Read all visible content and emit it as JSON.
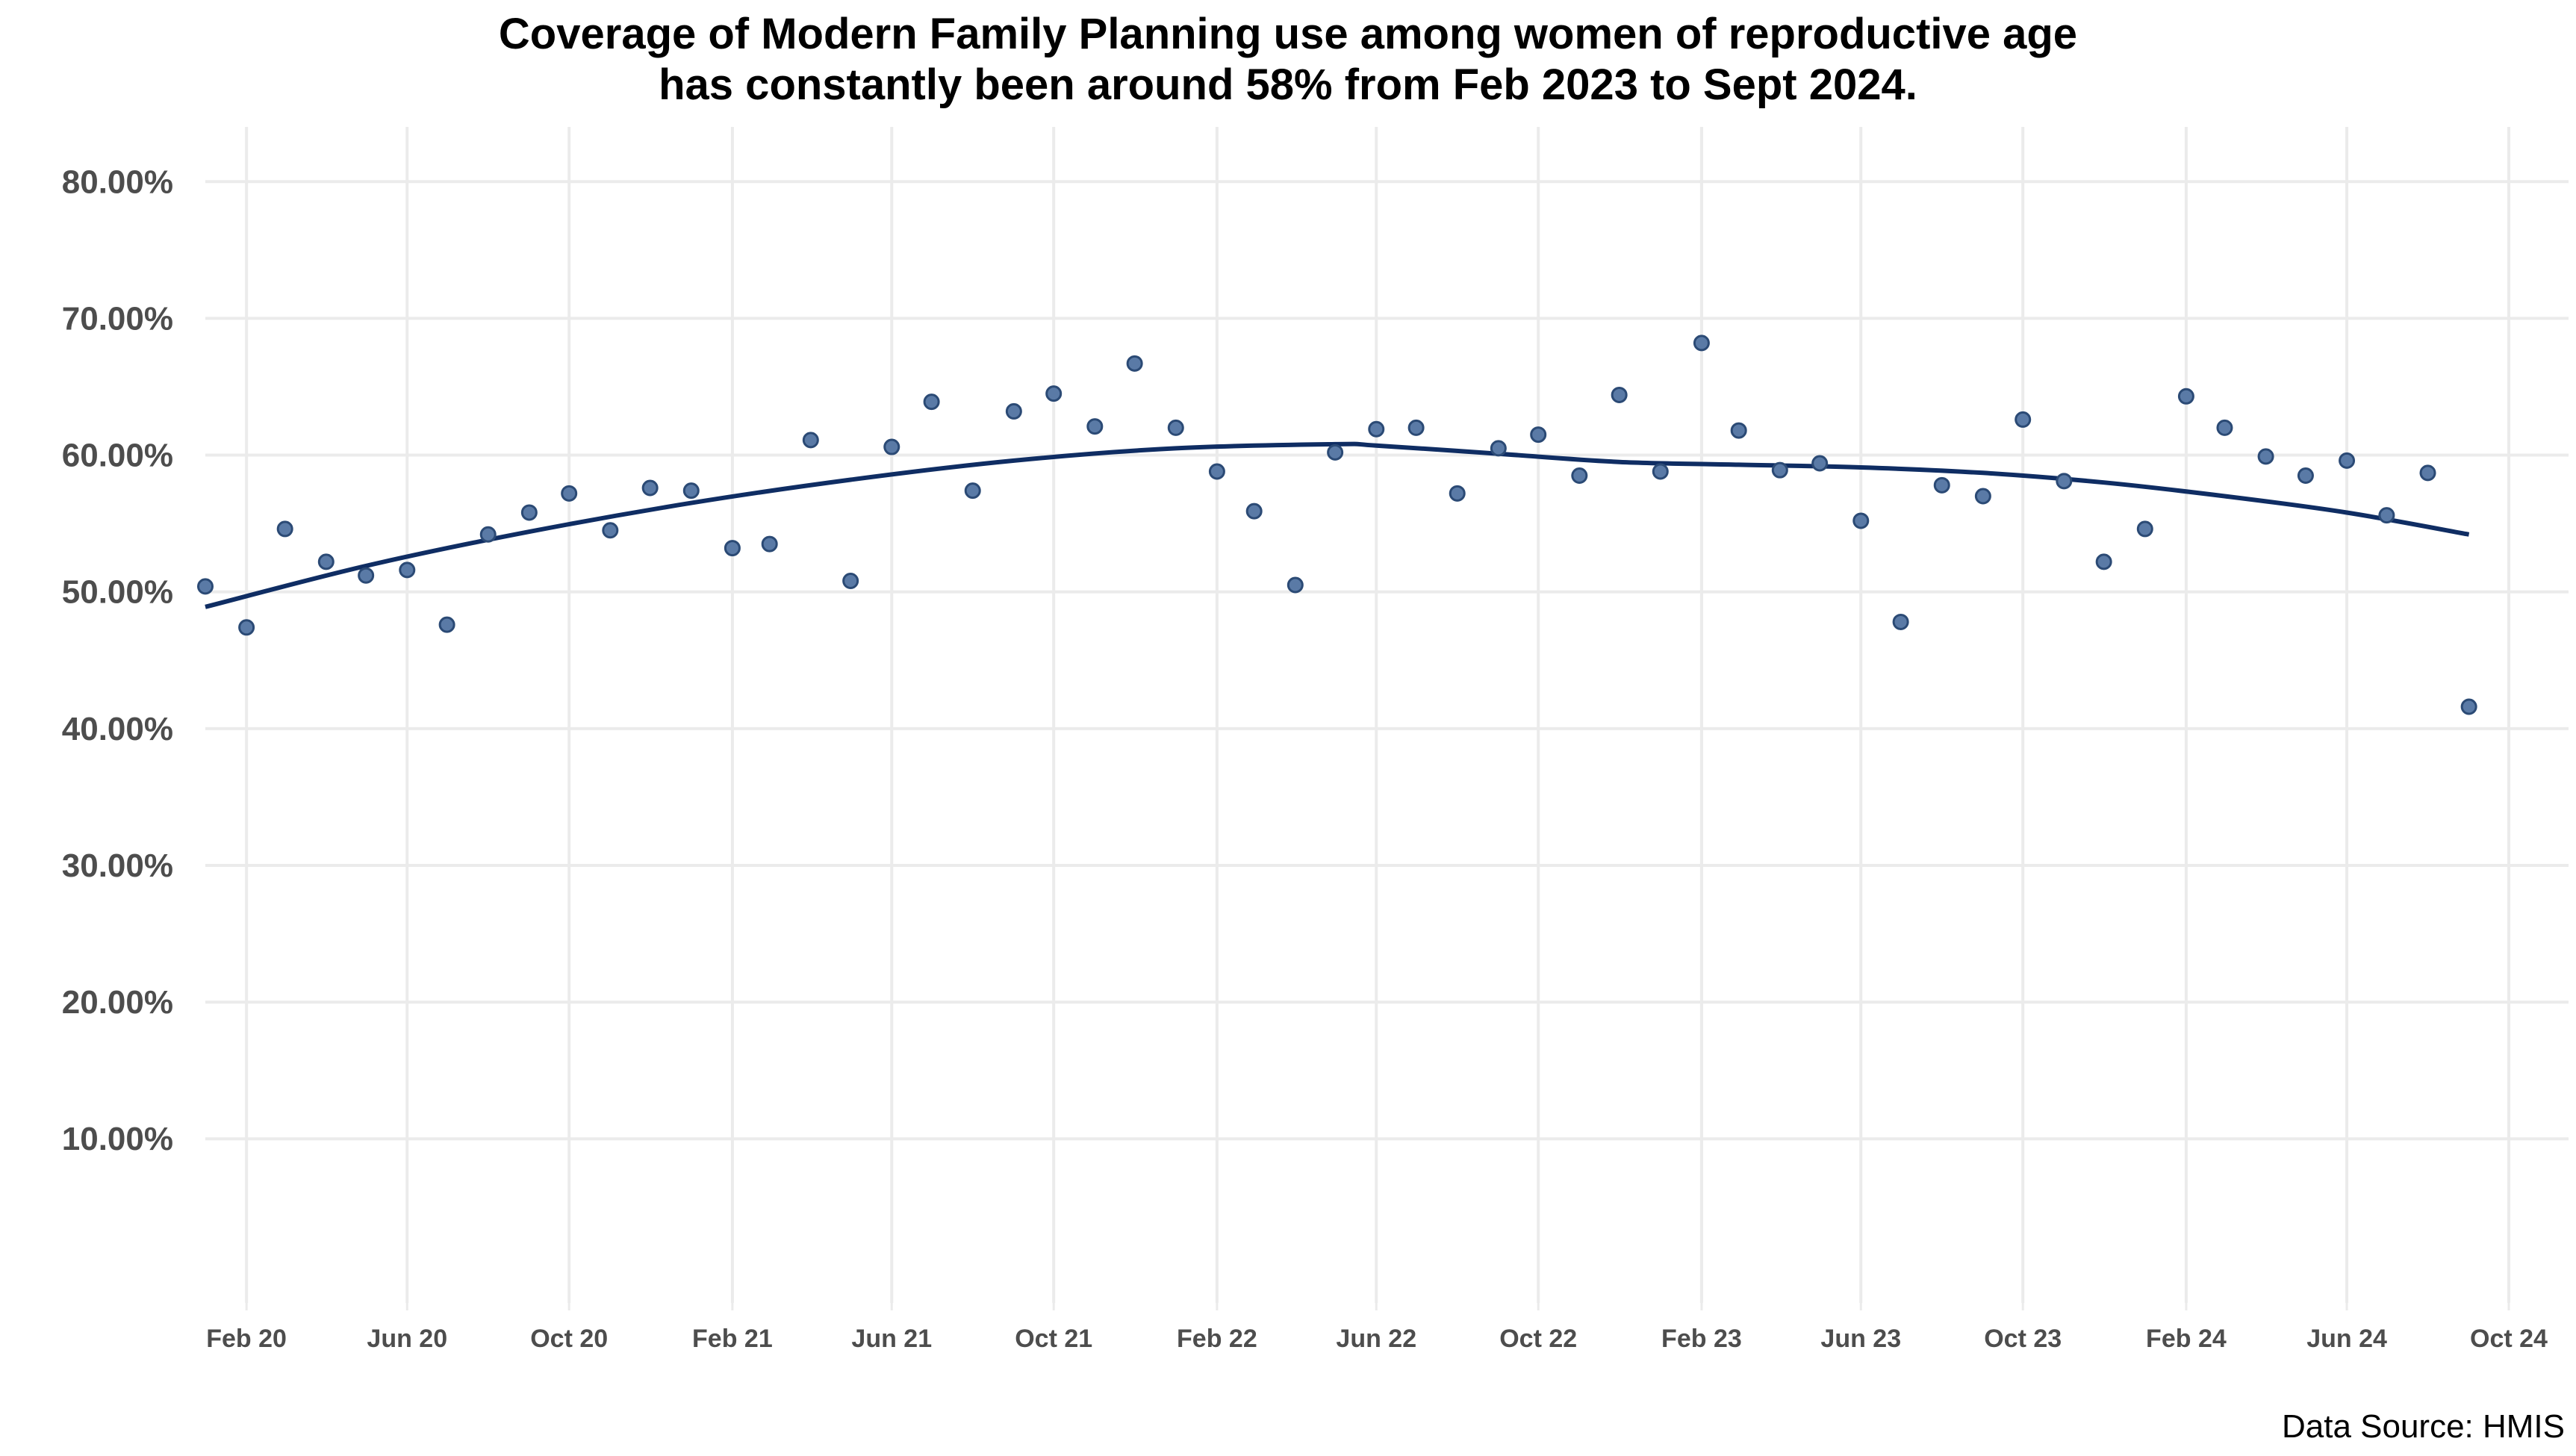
{
  "chart_data": {
    "type": "scatter",
    "title_lines": [
      "Coverage of Modern Family Planning use among women of reproductive age",
      "has constantly been around 58% from Feb 2023 to Sept 2024."
    ],
    "caption": "Data Source: HMIS",
    "xlabel": "",
    "ylabel": "",
    "x_type": "date",
    "xlim": [
      "2020-01-01",
      "2024-11-15"
    ],
    "ylim": [
      -2,
      84
    ],
    "grid": true,
    "legend": "none",
    "colors": {
      "points": "#5a7aa6",
      "point_outline": "#2b4a75",
      "trend": "#0f2d63",
      "grid": "#ebebeb"
    },
    "y_ticks": [
      {
        "value": 10,
        "label": "10.00%"
      },
      {
        "value": 20,
        "label": "20.00%"
      },
      {
        "value": 30,
        "label": "30.00%"
      },
      {
        "value": 40,
        "label": "40.00%"
      },
      {
        "value": 50,
        "label": "50.00%"
      },
      {
        "value": 60,
        "label": "60.00%"
      },
      {
        "value": 70,
        "label": "70.00%"
      },
      {
        "value": 80,
        "label": "80.00%"
      }
    ],
    "x_ticks": [
      {
        "date": "2020-02-01",
        "label": "Feb 20"
      },
      {
        "date": "2020-06-01",
        "label": "Jun 20"
      },
      {
        "date": "2020-10-01",
        "label": "Oct 20"
      },
      {
        "date": "2021-02-01",
        "label": "Feb 21"
      },
      {
        "date": "2021-06-01",
        "label": "Jun 21"
      },
      {
        "date": "2021-10-01",
        "label": "Oct 21"
      },
      {
        "date": "2022-02-01",
        "label": "Feb 22"
      },
      {
        "date": "2022-06-01",
        "label": "Jun 22"
      },
      {
        "date": "2022-10-01",
        "label": "Oct 22"
      },
      {
        "date": "2023-02-01",
        "label": "Feb 23"
      },
      {
        "date": "2023-06-01",
        "label": "Jun 23"
      },
      {
        "date": "2023-10-01",
        "label": "Oct 23"
      },
      {
        "date": "2024-02-01",
        "label": "Feb 24"
      },
      {
        "date": "2024-06-01",
        "label": "Jun 24"
      },
      {
        "date": "2024-10-01",
        "label": "Oct 24"
      }
    ],
    "points": [
      {
        "x": "2020-01-01",
        "y": 50.4
      },
      {
        "x": "2020-02-01",
        "y": 47.4
      },
      {
        "x": "2020-03-01",
        "y": 54.6
      },
      {
        "x": "2020-04-01",
        "y": 52.2
      },
      {
        "x": "2020-05-01",
        "y": 51.2
      },
      {
        "x": "2020-06-01",
        "y": 51.6
      },
      {
        "x": "2020-07-01",
        "y": 47.6
      },
      {
        "x": "2020-08-01",
        "y": 54.2
      },
      {
        "x": "2020-09-01",
        "y": 55.8
      },
      {
        "x": "2020-10-01",
        "y": 57.2
      },
      {
        "x": "2020-11-01",
        "y": 54.5
      },
      {
        "x": "2020-12-01",
        "y": 57.6
      },
      {
        "x": "2021-01-01",
        "y": 57.4
      },
      {
        "x": "2021-02-01",
        "y": 53.2
      },
      {
        "x": "2021-03-01",
        "y": 53.5
      },
      {
        "x": "2021-04-01",
        "y": 61.1
      },
      {
        "x": "2021-05-01",
        "y": 50.8
      },
      {
        "x": "2021-06-01",
        "y": 60.6
      },
      {
        "x": "2021-07-01",
        "y": 63.9
      },
      {
        "x": "2021-08-01",
        "y": 57.4
      },
      {
        "x": "2021-09-01",
        "y": 63.2
      },
      {
        "x": "2021-10-01",
        "y": 64.5
      },
      {
        "x": "2021-11-01",
        "y": 62.1
      },
      {
        "x": "2021-12-01",
        "y": 66.7
      },
      {
        "x": "2022-01-01",
        "y": 62.0
      },
      {
        "x": "2022-02-01",
        "y": 58.8
      },
      {
        "x": "2022-03-01",
        "y": 55.9
      },
      {
        "x": "2022-04-01",
        "y": 50.5
      },
      {
        "x": "2022-05-01",
        "y": 60.2
      },
      {
        "x": "2022-06-01",
        "y": 61.9
      },
      {
        "x": "2022-07-01",
        "y": 62.0
      },
      {
        "x": "2022-08-01",
        "y": 57.2
      },
      {
        "x": "2022-09-01",
        "y": 60.5
      },
      {
        "x": "2022-10-01",
        "y": 61.5
      },
      {
        "x": "2022-11-01",
        "y": 58.5
      },
      {
        "x": "2022-12-01",
        "y": 64.4
      },
      {
        "x": "2023-01-01",
        "y": 58.8
      },
      {
        "x": "2023-02-01",
        "y": 68.2
      },
      {
        "x": "2023-03-01",
        "y": 61.8
      },
      {
        "x": "2023-04-01",
        "y": 58.9
      },
      {
        "x": "2023-05-01",
        "y": 59.4
      },
      {
        "x": "2023-06-01",
        "y": 55.2
      },
      {
        "x": "2023-07-01",
        "y": 47.8
      },
      {
        "x": "2023-08-01",
        "y": 57.8
      },
      {
        "x": "2023-09-01",
        "y": 57.0
      },
      {
        "x": "2023-10-01",
        "y": 62.6
      },
      {
        "x": "2023-11-01",
        "y": 58.1
      },
      {
        "x": "2023-12-01",
        "y": 52.2
      },
      {
        "x": "2024-01-01",
        "y": 54.6
      },
      {
        "x": "2024-02-01",
        "y": 64.3
      },
      {
        "x": "2024-03-01",
        "y": 62.0
      },
      {
        "x": "2024-04-01",
        "y": 59.9
      },
      {
        "x": "2024-05-01",
        "y": 58.5
      },
      {
        "x": "2024-06-01",
        "y": 59.6
      },
      {
        "x": "2024-07-01",
        "y": 55.6
      },
      {
        "x": "2024-08-01",
        "y": 58.7
      },
      {
        "x": "2024-09-01",
        "y": 41.6
      }
    ],
    "trend_line": [
      {
        "x": "2020-01-01",
        "y": 48.9
      },
      {
        "x": "2020-05-01",
        "y": 51.9
      },
      {
        "x": "2020-09-01",
        "y": 54.4
      },
      {
        "x": "2021-01-01",
        "y": 56.5
      },
      {
        "x": "2021-05-01",
        "y": 58.2
      },
      {
        "x": "2021-09-01",
        "y": 59.6
      },
      {
        "x": "2022-01-01",
        "y": 60.5
      },
      {
        "x": "2022-05-01",
        "y": 60.8
      },
      {
        "x": "2022-06-01",
        "y": 60.7
      },
      {
        "x": "2022-09-01",
        "y": 60.1
      },
      {
        "x": "2022-12-01",
        "y": 59.5
      },
      {
        "x": "2023-03-01",
        "y": 59.3
      },
      {
        "x": "2023-06-01",
        "y": 59.1
      },
      {
        "x": "2023-09-01",
        "y": 58.7
      },
      {
        "x": "2023-12-01",
        "y": 58.0
      },
      {
        "x": "2024-03-01",
        "y": 57.0
      },
      {
        "x": "2024-06-01",
        "y": 55.8
      },
      {
        "x": "2024-09-01",
        "y": 54.2
      }
    ]
  }
}
